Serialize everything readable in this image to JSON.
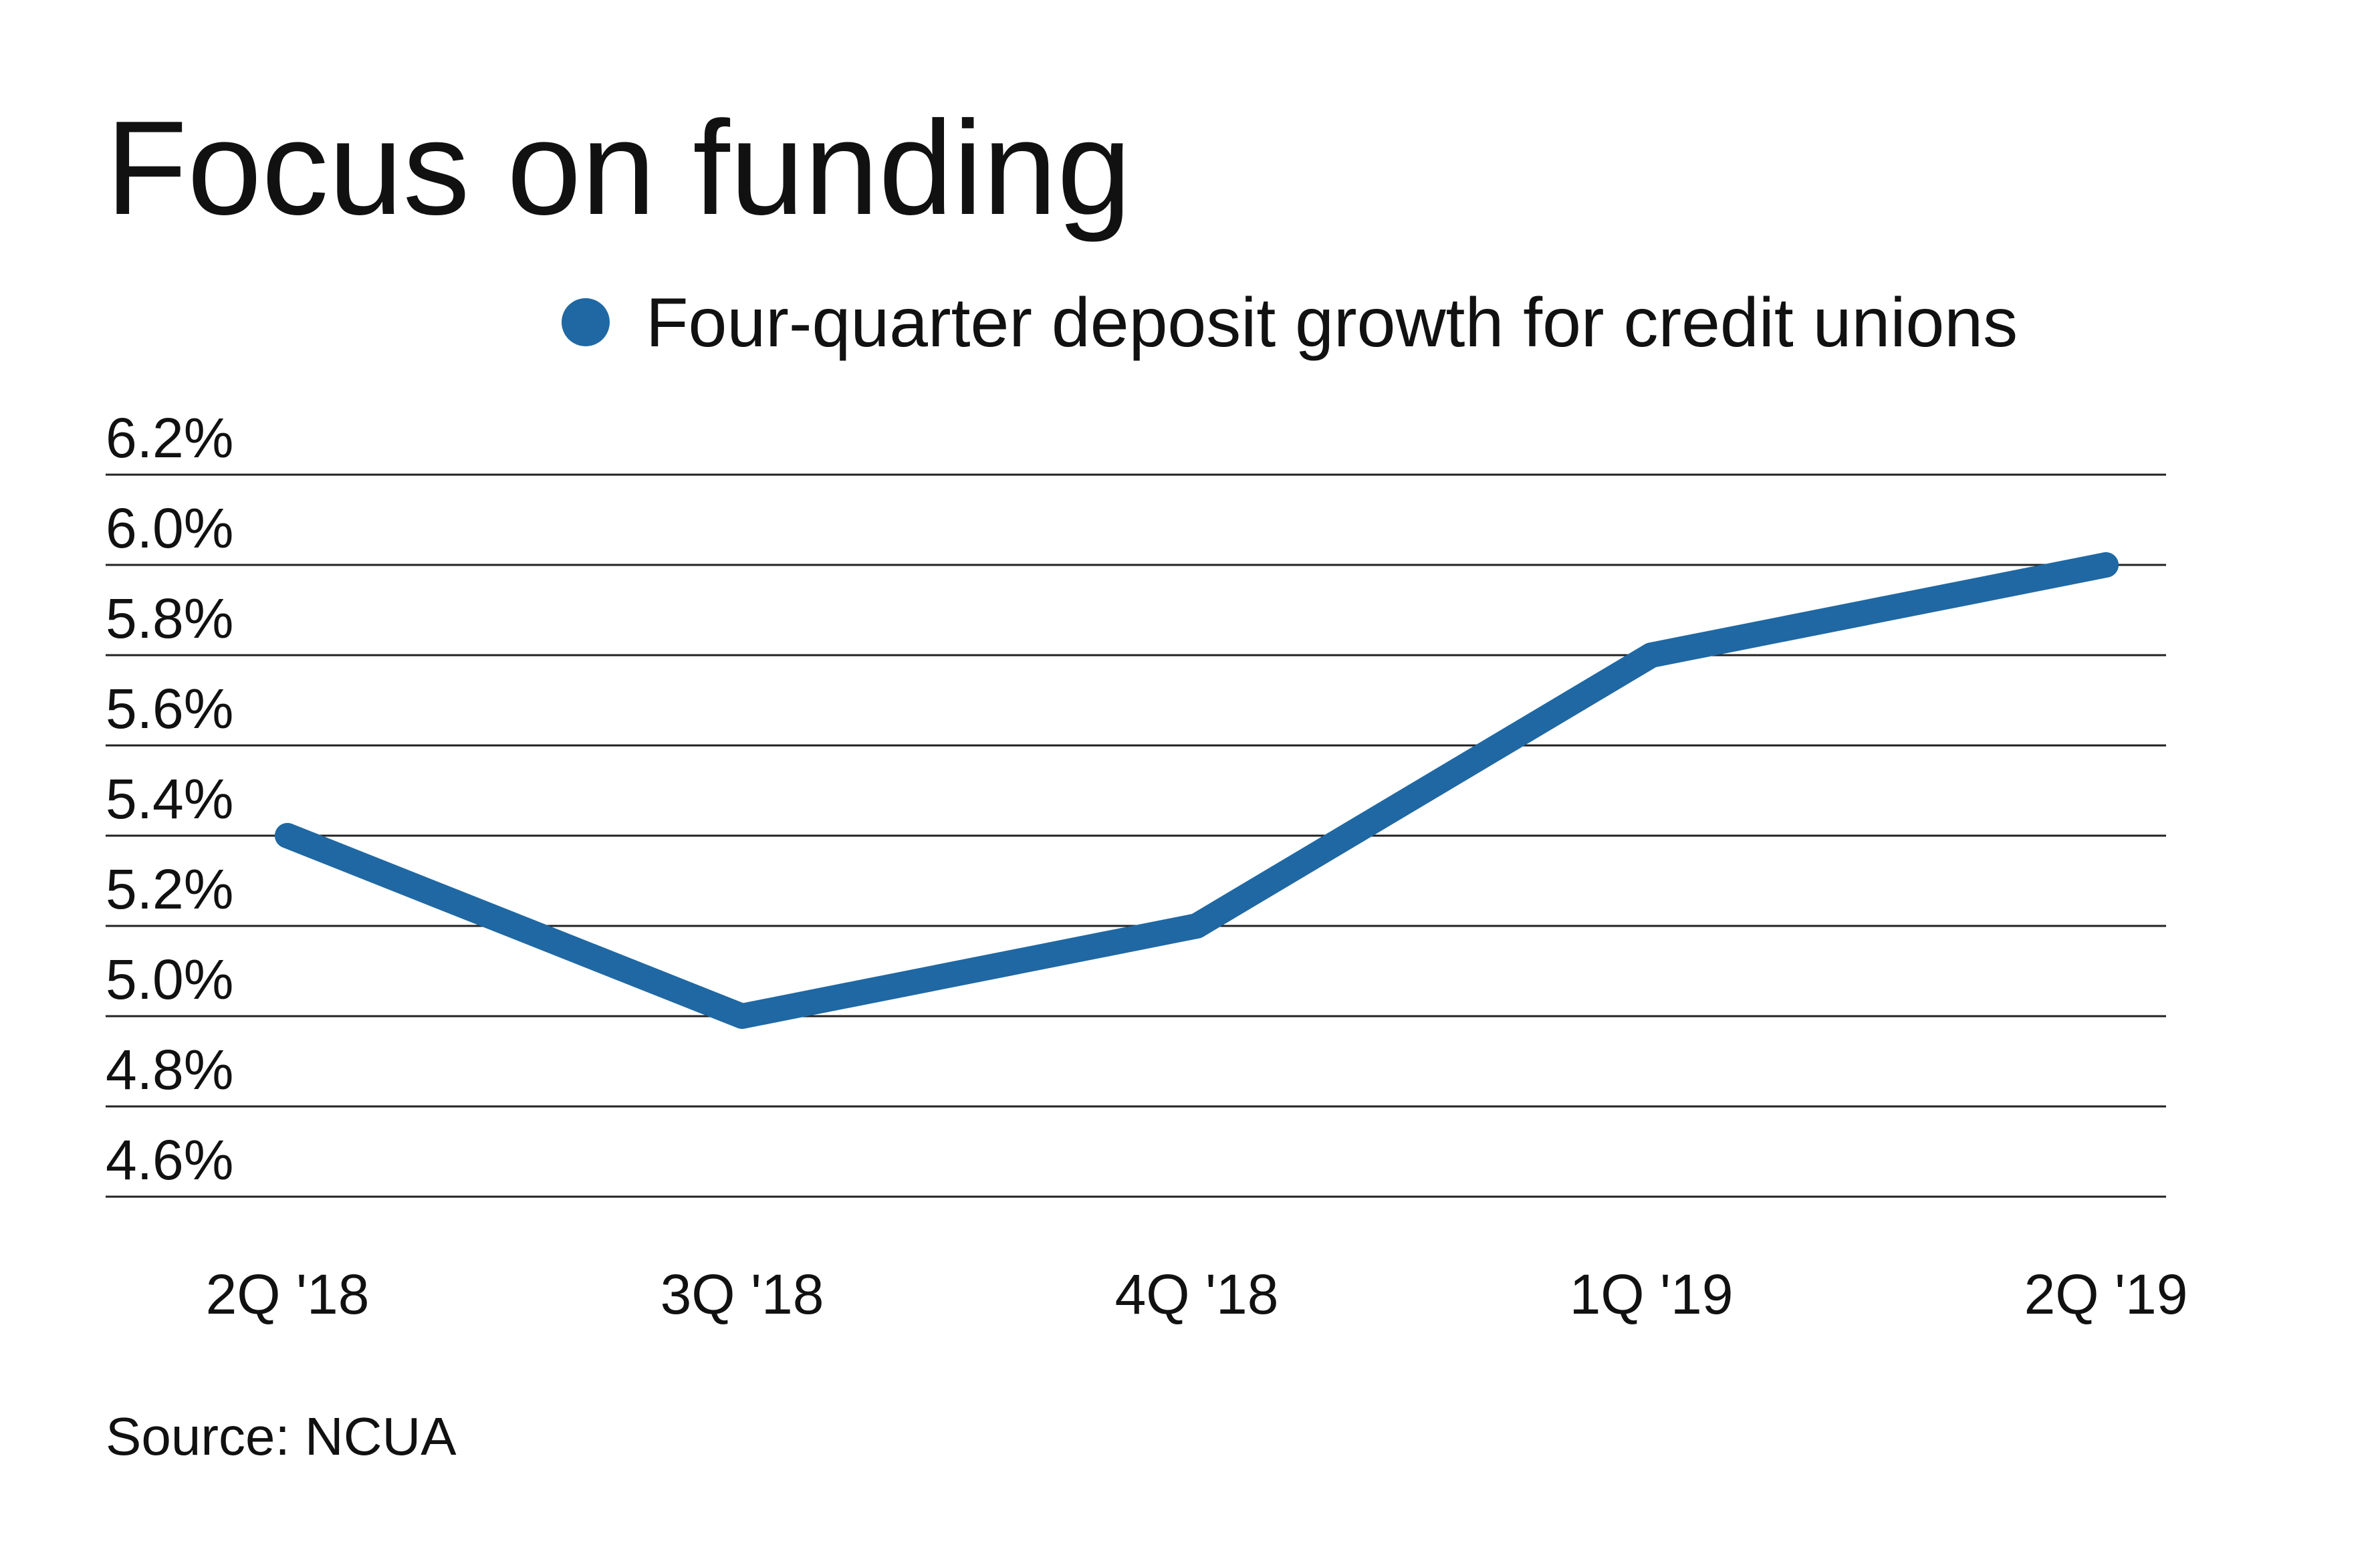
{
  "chart_data": {
    "type": "line",
    "title": "Focus on funding",
    "xlabel": "",
    "ylabel": "",
    "categories": [
      "2Q '18",
      "3Q '18",
      "4Q '18",
      "1Q '19",
      "2Q '19"
    ],
    "series": [
      {
        "name": "Four-quarter deposit growth for credit unions",
        "values": [
          5.4,
          5.0,
          5.2,
          5.8,
          6.0
        ]
      }
    ],
    "ylim": [
      4.6,
      6.2
    ],
    "yticks": [
      "6.2%",
      "6.0%",
      "5.8%",
      "5.6%",
      "5.4%",
      "5.2%",
      "5.0%",
      "4.8%",
      "4.6%"
    ],
    "ytick_values": [
      6.2,
      6.0,
      5.8,
      5.6,
      5.4,
      5.2,
      5.0,
      4.8,
      4.6
    ],
    "grid": true,
    "legend_position": "top-right",
    "source": "Source: NCUA",
    "colors": {
      "series": "#1f68a3",
      "grid": "#222222",
      "text": "#111111"
    }
  }
}
